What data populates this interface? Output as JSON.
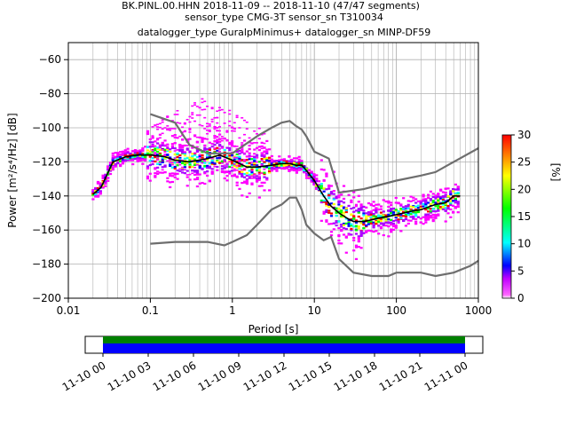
{
  "header": {
    "line1": "BK.PINL.00.HHN   2018-11-09 -- 2018-11-10  (47/47 segments)",
    "line2": "sensor_type CMG-3T sensor_sn T310034",
    "line3": "datalogger_type GuralpMinimus+ datalogger_sn MINP-DF59"
  },
  "chart_data": {
    "type": "heatmap",
    "xlabel": "Period [s]",
    "ylabel": "Power [m²/s⁴/Hz] [dB]",
    "xscale": "log",
    "xlim": [
      0.01,
      1000
    ],
    "ylim": [
      -200,
      -50
    ],
    "x_ticks": [
      0.01,
      0.1,
      1,
      10,
      100,
      1000
    ],
    "x_tick_labels": [
      "0.01",
      "0.1",
      "1",
      "10",
      "100",
      "1000"
    ],
    "y_ticks": [
      -200,
      -180,
      -160,
      -140,
      -120,
      -100,
      -80,
      -60
    ],
    "y_tick_labels": [
      "−200",
      "−180",
      "−160",
      "−140",
      "−120",
      "−100",
      "−80",
      "−60"
    ],
    "grid": true,
    "colorbar": {
      "label": "[%]",
      "ticks": [
        0,
        5,
        10,
        15,
        20,
        25,
        30
      ],
      "tick_labels": [
        "0",
        "5",
        "10",
        "15",
        "20",
        "25",
        "30"
      ],
      "range": [
        0,
        30
      ],
      "colormap": [
        "#ffffff",
        "#ff00ff",
        "#0000ff",
        "#00ffff",
        "#00ff00",
        "#ffff00",
        "#ff0000"
      ]
    },
    "series": [
      {
        "x": [
          0.02,
          0.025,
          0.03,
          0.035,
          0.05,
          0.07,
          0.1,
          0.15,
          0.2,
          0.3,
          0.5,
          0.7,
          1,
          1.5,
          2,
          3,
          4,
          5,
          6,
          7,
          8,
          10,
          13,
          16,
          20,
          25,
          30,
          35,
          40,
          50,
          60,
          80,
          100,
          150,
          200,
          300,
          400,
          500,
          600
        ],
        "y": [
          -139,
          -135,
          -127,
          -120,
          -117,
          -116,
          -116,
          -117,
          -119,
          -120,
          -118,
          -116,
          -119,
          -123,
          -123,
          -122,
          -121,
          -121,
          -122,
          -122,
          -125,
          -131,
          -140,
          -146,
          -150,
          -153,
          -155,
          -155,
          -155,
          -154,
          -153,
          -152,
          -151,
          -149,
          -148,
          -145,
          -144,
          -140,
          -140
        ]
      },
      {
        "x": [
          0.1,
          0.2,
          0.3,
          0.5,
          1,
          2,
          3,
          4,
          5,
          6,
          7,
          8,
          10,
          15,
          20,
          40,
          100,
          200,
          300,
          500,
          1000
        ],
        "y": [
          -92,
          -97,
          -110,
          -115,
          -115,
          -105,
          -100,
          -97,
          -96,
          -99,
          -101,
          -105,
          -114,
          -118,
          -138,
          -136,
          -131,
          -128,
          -126,
          -120,
          -112
        ]
      },
      {
        "x": [
          0.1,
          0.2,
          0.5,
          0.8,
          1,
          1.5,
          2,
          3,
          4,
          5,
          6,
          7,
          8,
          10,
          13,
          16,
          20,
          30,
          50,
          80,
          100,
          200,
          300,
          500,
          800,
          1000
        ],
        "y": [
          -168,
          -167,
          -167,
          -169,
          -167,
          -163,
          -157,
          -148,
          -145,
          -141,
          -141,
          -148,
          -157,
          -162,
          -166,
          -164,
          -177,
          -185,
          -187,
          -187,
          -185,
          -185,
          -187,
          -185,
          -181,
          -178
        ]
      }
    ],
    "timeline": {
      "tick_labels": [
        "11-10 00",
        "11-10 03",
        "11-10 06",
        "11-10 09",
        "11-10 12",
        "11-10 15",
        "11-10 18",
        "11-10 21",
        "11-11 00"
      ],
      "coverage_colors": [
        "#008000",
        "#0000ff"
      ]
    }
  }
}
